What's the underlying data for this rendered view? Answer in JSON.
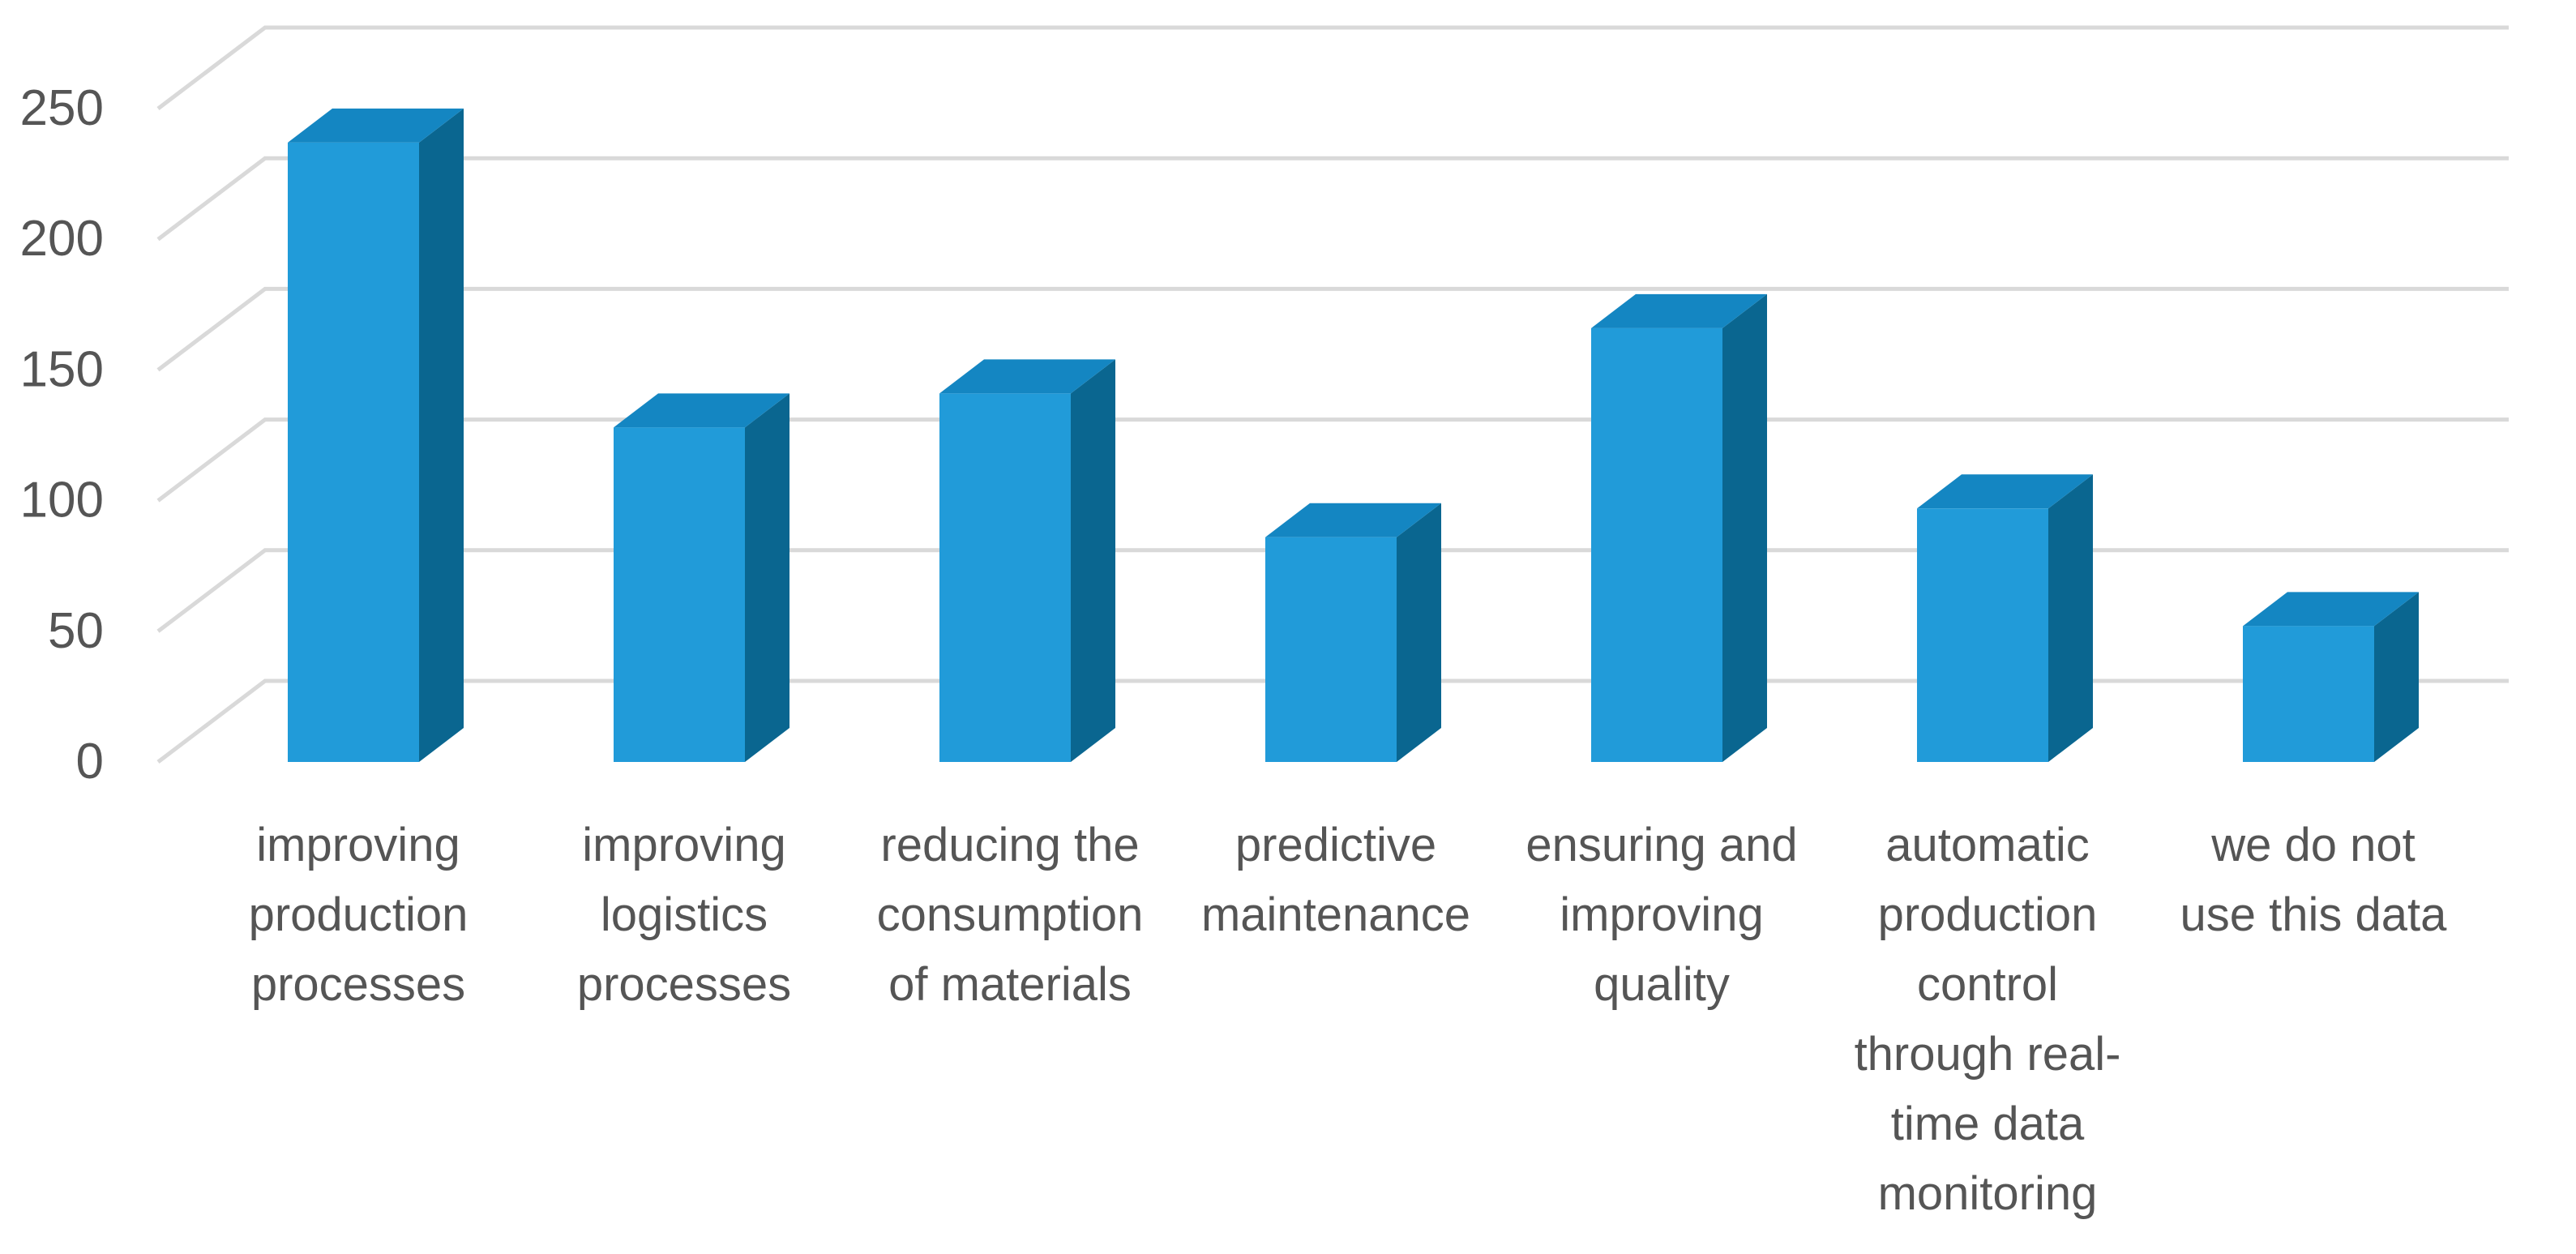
{
  "chart_data": {
    "type": "bar",
    "style": "3d-column",
    "title": "",
    "xlabel": "",
    "ylabel": "",
    "ylim": [
      0,
      250
    ],
    "yticks": [
      0,
      50,
      100,
      150,
      200,
      250
    ],
    "grid": true,
    "legend": "none",
    "categories": [
      [
        "improving",
        "production",
        "processes"
      ],
      [
        "improving",
        "logistics",
        "processes"
      ],
      [
        "reducing the",
        "consumption",
        "of materials"
      ],
      [
        "predictive",
        "maintenance"
      ],
      [
        "ensuring and",
        "improving",
        "quality"
      ],
      [
        "automatic",
        "production",
        "control",
        "through real-",
        "time data",
        "monitoring"
      ],
      [
        "we do not",
        "use this data"
      ]
    ],
    "values": [
      237,
      128,
      141,
      86,
      166,
      97,
      52
    ],
    "colors": {
      "front": "#219bd9",
      "top": "#1486c2",
      "side": "#0a6690",
      "grid": "#d9d9d9",
      "text": "#555555"
    }
  }
}
